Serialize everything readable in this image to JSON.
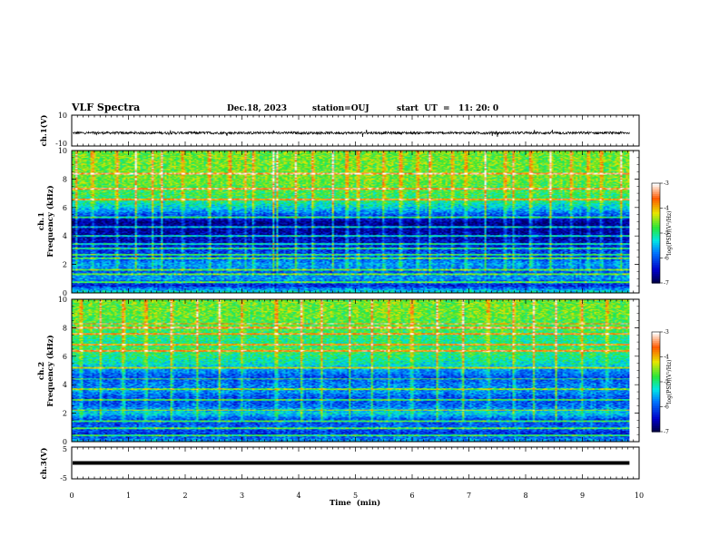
{
  "header": {
    "title": "VLF Spectra",
    "date": "Dec.18, 2023",
    "station": "station=OUJ",
    "start": "start  UT  =   11: 20: 0"
  },
  "chart_data": [
    {
      "type": "line",
      "name": "ch1-waveform",
      "ylabel": "ch.1(V)",
      "ylim": [
        -10,
        10
      ],
      "yticks": [
        "10",
        "-10"
      ],
      "xlim": [
        0,
        10
      ],
      "level": -1.5,
      "data_end_min": 9.83
    },
    {
      "type": "heatmap",
      "name": "ch1-spectrogram",
      "ylabel": "ch.1\nFrequency  (kHz)",
      "ylabel_line1": "ch.1",
      "ylabel_line2": "Frequency  (kHz)",
      "ylim": [
        0,
        10
      ],
      "yticks": [
        "0",
        "2",
        "4",
        "6",
        "8",
        "10"
      ],
      "xlim": [
        0,
        10
      ],
      "data_end_min": 9.83,
      "colorbar": {
        "label": "log(PSD)(V²/Hz)",
        "range": [
          -7,
          -3
        ],
        "ticks": [
          "-3",
          "-4",
          "-5",
          "-6",
          "-7"
        ]
      },
      "profile_kHz": [
        [
          0,
          -5.2
        ],
        [
          0.5,
          -6.3
        ],
        [
          1.0,
          -5.6
        ],
        [
          1.5,
          -6.0
        ],
        [
          2.0,
          -5.6
        ],
        [
          2.5,
          -6.1
        ],
        [
          3.0,
          -6.2
        ],
        [
          3.5,
          -6.5
        ],
        [
          4.0,
          -6.6
        ],
        [
          4.5,
          -6.7
        ],
        [
          5.0,
          -6.7
        ],
        [
          5.5,
          -6.0
        ],
        [
          6.0,
          -5.4
        ],
        [
          6.5,
          -5.0
        ],
        [
          7.0,
          -4.8
        ],
        [
          7.5,
          -4.7
        ],
        [
          8.0,
          -4.6
        ],
        [
          9.0,
          -4.6
        ],
        [
          10.0,
          -4.6
        ]
      ],
      "lines_kHz": [
        0.7,
        1.3,
        1.6,
        2.4,
        2.7,
        3.1,
        3.4,
        4.0,
        4.6,
        5.3,
        6.6,
        7.3,
        8.4
      ],
      "burst_times_min": [
        0.06,
        0.35,
        0.78,
        1.12,
        1.42,
        1.58,
        1.95,
        2.42,
        2.78,
        3.05,
        3.2,
        3.55,
        3.62,
        3.95,
        4.25,
        4.6,
        4.85,
        5.05,
        5.5,
        5.8,
        6.1,
        6.32,
        6.72,
        6.95,
        7.3,
        7.65,
        7.8,
        8.1,
        8.45,
        8.82,
        9.12,
        9.35,
        9.7
      ]
    },
    {
      "type": "heatmap",
      "name": "ch2-spectrogram",
      "ylabel": "ch.2\nFrequency  (kHz)",
      "ylabel_line1": "ch.2",
      "ylabel_line2": "Frequency  (kHz)",
      "ylim": [
        0,
        10
      ],
      "yticks": [
        "0",
        "2",
        "4",
        "6",
        "8",
        "10"
      ],
      "xlim": [
        0,
        10
      ],
      "data_end_min": 9.83,
      "colorbar": {
        "label": "log(PSD)(V²/Hz)",
        "range": [
          -7,
          -3
        ],
        "ticks": [
          "-3",
          "-4",
          "-5",
          "-6",
          "-7"
        ]
      },
      "profile_kHz": [
        [
          0,
          -5.6
        ],
        [
          0.5,
          -6.2
        ],
        [
          1.0,
          -5.9
        ],
        [
          1.5,
          -6.1
        ],
        [
          2.0,
          -5.3
        ],
        [
          2.5,
          -5.9
        ],
        [
          3.0,
          -6.1
        ],
        [
          3.5,
          -5.7
        ],
        [
          4.0,
          -5.8
        ],
        [
          4.5,
          -6.0
        ],
        [
          5.0,
          -5.7
        ],
        [
          5.5,
          -5.2
        ],
        [
          6.0,
          -5.0
        ],
        [
          6.5,
          -4.8
        ],
        [
          7.0,
          -5.0
        ],
        [
          7.5,
          -4.9
        ],
        [
          8.0,
          -4.7
        ],
        [
          8.5,
          -4.7
        ],
        [
          9.0,
          -4.6
        ],
        [
          10.0,
          -4.6
        ]
      ],
      "lines_kHz": [
        0.4,
        0.9,
        1.4,
        2.2,
        2.9,
        3.7,
        4.4,
        5.2,
        6.4,
        6.8,
        7.6,
        8.0,
        8.3
      ],
      "burst_times_min": [
        0.15,
        0.5,
        0.9,
        1.3,
        1.75,
        2.2,
        2.6,
        3.0,
        3.6,
        4.05,
        4.4,
        4.9,
        5.3,
        5.6,
        6.0,
        6.45,
        6.9,
        7.35,
        7.8,
        8.15,
        8.55,
        9.0,
        9.45
      ]
    },
    {
      "type": "line",
      "name": "ch3-waveform",
      "ylabel": "ch.3(V)",
      "ylim": [
        -5,
        5
      ],
      "yticks": [
        "5",
        "-5"
      ],
      "xlim": [
        0,
        10
      ],
      "level": 0,
      "data_end_min": 9.83,
      "xlabel": "Time  (min)",
      "xticks": [
        "0",
        "1",
        "2",
        "3",
        "4",
        "5",
        "6",
        "7",
        "8",
        "9",
        "10"
      ]
    }
  ]
}
